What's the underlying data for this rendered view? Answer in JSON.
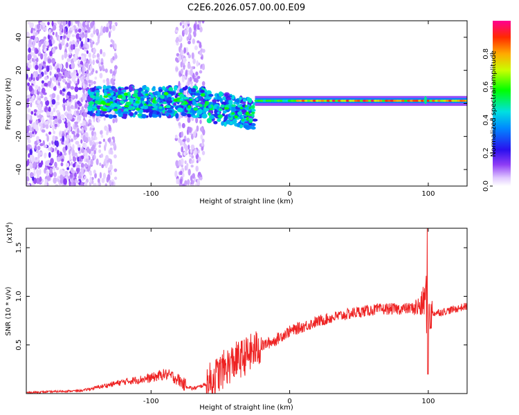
{
  "title": "C2E6.2026.057.00.00.E09",
  "chart_data": [
    {
      "type": "heatmap",
      "title": "C2E6.2026.057.00.00.E09",
      "xlabel": "Height of straight line (km)",
      "ylabel": "Frequency (Hz)",
      "xlim": [
        -190,
        128
      ],
      "ylim": [
        -50,
        50
      ],
      "x_ticks": [
        -100,
        0,
        100
      ],
      "x_tick_labels": [
        "-100",
        "0",
        "100"
      ],
      "y_ticks": [
        -40,
        -20,
        0,
        20,
        40
      ],
      "y_tick_labels": [
        "-40",
        "-20",
        "0",
        "20",
        "40"
      ],
      "colorbar": {
        "label": "Normalized spectral amplitude",
        "range": [
          0,
          1
        ],
        "ticks": [
          0.0,
          0.2,
          0.4,
          0.6,
          0.8
        ],
        "tick_labels": [
          "0.0",
          "0.2",
          "0.4",
          "0.6",
          "0.8"
        ]
      },
      "regions": [
        {
          "x_range": [
            -190,
            -145
          ],
          "freq_range": [
            -50,
            50
          ],
          "amplitude": 0.06,
          "description": "broadband scatter"
        },
        {
          "x_range": [
            -145,
            -60
          ],
          "freq_range": [
            -8,
            10
          ],
          "amplitude": 0.3
        },
        {
          "x_range": [
            -60,
            -25
          ],
          "freq_range": [
            -12,
            10
          ],
          "amplitude": 0.4
        },
        {
          "x_range": [
            -25,
            128
          ],
          "freq_range": [
            0,
            3
          ],
          "amplitude": 0.85
        }
      ]
    },
    {
      "type": "line",
      "xlabel": "Height of straight line (km)",
      "ylabel": "SNR (10 * v/v)",
      "y_scale_label": "(x10",
      "y_scale_exponent": "4",
      "xlim": [
        -190,
        128
      ],
      "ylim": [
        0,
        1.7
      ],
      "x_ticks": [
        -100,
        0,
        100
      ],
      "x_tick_labels": [
        "-100",
        "0",
        "100"
      ],
      "y_ticks": [
        0.5,
        1.0,
        1.5
      ],
      "y_tick_labels": [
        "0.5",
        "1.0",
        "1.5"
      ],
      "color": "#ee2222",
      "series": [
        {
          "name": "SNR",
          "x": [
            -190,
            -170,
            -150,
            -140,
            -130,
            -120,
            -110,
            -100,
            -95,
            -90,
            -85,
            -80,
            -75,
            -70,
            -65,
            -60,
            -55,
            -50,
            -45,
            -40,
            -35,
            -30,
            -25,
            -20,
            -15,
            -10,
            -5,
            0,
            10,
            20,
            30,
            40,
            50,
            60,
            70,
            80,
            90,
            95,
            98,
            100,
            102,
            105,
            110,
            120,
            128
          ],
          "values": [
            0.01,
            0.02,
            0.03,
            0.06,
            0.09,
            0.12,
            0.14,
            0.16,
            0.18,
            0.2,
            0.18,
            0.14,
            0.08,
            0.05,
            0.07,
            0.1,
            0.15,
            0.22,
            0.28,
            0.33,
            0.36,
            0.4,
            0.45,
            0.49,
            0.52,
            0.55,
            0.6,
            0.64,
            0.69,
            0.74,
            0.78,
            0.81,
            0.84,
            0.86,
            0.87,
            0.87,
            0.88,
            0.9,
            1.0,
            0.85,
            0.82,
            0.83,
            0.84,
            0.87,
            0.9
          ]
        }
      ]
    }
  ]
}
